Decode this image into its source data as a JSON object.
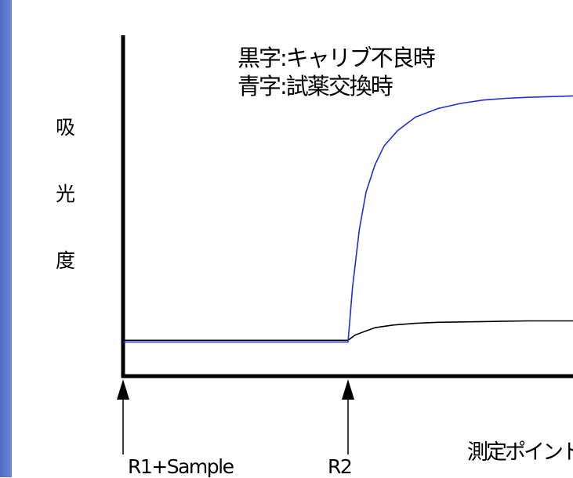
{
  "chart_data": {
    "type": "line",
    "title": "",
    "legend": {
      "black_label": "黒字:キャリブ不良時",
      "blue_label": "青字:試薬交換時"
    },
    "ylabel_chars": [
      "吸",
      "光",
      "度"
    ],
    "xlabel": "測定ポイント",
    "markers": [
      {
        "label": "R1+Sample",
        "x": 0
      },
      {
        "label": "R2",
        "x": 10
      }
    ],
    "xlim": [
      0,
      20
    ],
    "ylim": [
      0,
      10
    ],
    "series": [
      {
        "color": "#000000",
        "x": [
          0,
          10,
          10.3,
          10.7,
          11.2,
          12,
          13,
          14,
          16,
          18,
          20
        ],
        "y": [
          1.05,
          1.05,
          1.2,
          1.3,
          1.42,
          1.5,
          1.55,
          1.58,
          1.6,
          1.62,
          1.62
        ]
      },
      {
        "color": "#1f2fd6",
        "x": [
          0,
          10,
          10.2,
          10.5,
          10.8,
          11.2,
          11.6,
          12.2,
          13,
          14,
          15,
          16,
          17,
          18,
          19,
          20
        ],
        "y": [
          1.0,
          1.0,
          2.6,
          4.3,
          5.4,
          6.2,
          6.75,
          7.2,
          7.6,
          7.85,
          8.0,
          8.1,
          8.15,
          8.18,
          8.2,
          8.22
        ]
      }
    ],
    "grid": false
  }
}
